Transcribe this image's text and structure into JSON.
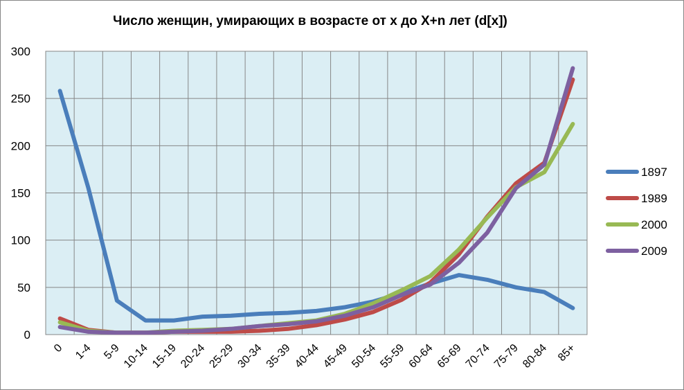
{
  "chart_data": {
    "type": "line",
    "title": "Число женщин, умирающих в возрасте от x до X+n лет  (d[x])",
    "xlabel": "",
    "ylabel": "",
    "categories": [
      "0",
      "1-4",
      "5-9",
      "10-14",
      "15-19",
      "20-24",
      "25-29",
      "30-34",
      "35-39",
      "40-44",
      "45-49",
      "50-54",
      "55-59",
      "60-64",
      "65-69",
      "70-74",
      "75-79",
      "80-84",
      "85+"
    ],
    "ylim": [
      0,
      300
    ],
    "yticks": [
      0,
      50,
      100,
      150,
      200,
      250,
      300
    ],
    "grid": true,
    "legend_position": "right",
    "plot_background": "#dbeef4",
    "series": [
      {
        "name": "1897",
        "color": "#4a7ebb",
        "values": [
          258,
          155,
          36,
          15,
          15,
          19,
          20,
          22,
          23,
          25,
          29,
          35,
          44,
          54,
          63,
          58,
          50,
          45,
          28
        ]
      },
      {
        "name": "1989",
        "color": "#be4b48",
        "values": [
          17,
          5,
          2,
          2,
          3,
          3,
          3,
          4,
          6,
          10,
          16,
          24,
          37,
          55,
          85,
          125,
          160,
          182,
          270
        ]
      },
      {
        "name": "2000",
        "color": "#98b954",
        "values": [
          13,
          4,
          2,
          2,
          4,
          5,
          6,
          9,
          12,
          15,
          22,
          33,
          47,
          62,
          90,
          124,
          156,
          172,
          223
        ]
      },
      {
        "name": "2009",
        "color": "#7d60a0",
        "values": [
          8,
          3,
          2,
          2,
          3,
          4,
          6,
          9,
          11,
          14,
          20,
          29,
          42,
          53,
          76,
          108,
          155,
          180,
          282
        ]
      }
    ]
  }
}
